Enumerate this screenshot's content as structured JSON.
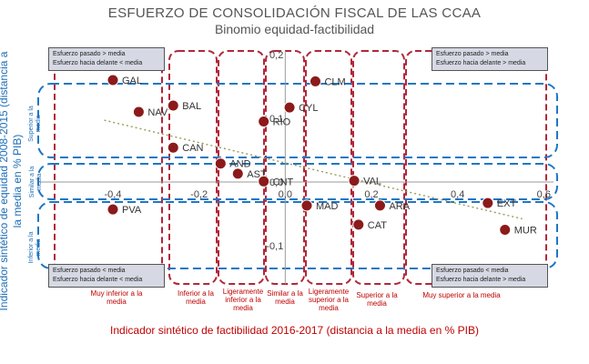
{
  "title": "ESFUERZO DE CONSOLIDACIÓN FISCAL DE LAS CCAA",
  "subtitle": "Binomio equidad-factibilidad",
  "xlabel": "Indicador sintético de factibilidad 2016-2017 (distancia a la media en % PIB)",
  "ylabel": "Indicador sintético de equidad 2008-2015 (distancia a la media en % PIB)",
  "corner_boxes": {
    "top_left": [
      "Esfuerzo pasado > media",
      "Esfuerzo hacia delante < media"
    ],
    "top_right": [
      "Esfuerzo pasado > media",
      "Esfuerzo hacia delante > media"
    ],
    "bottom_left": [
      "Esfuerzo pasado < media",
      "Esfuerzo hacia delante < media"
    ],
    "bottom_right": [
      "Esfuerzo pasado < media",
      "Esfuerzo hacia delante > media"
    ]
  },
  "column_categories": [
    "Muy inferior a la media",
    "Inferior a la media",
    "Ligeramente inferior a la media",
    "Similar a la media",
    "Ligeramente superior a la media",
    "Superior a la media",
    "Muy superior a la media"
  ],
  "row_categories": [
    "Superior a la media",
    "Similar a la media",
    "Inferior a la media"
  ],
  "colors": {
    "point": "#8b1a1a",
    "red_band": "#b0283a",
    "blue_band": "#1f77c4",
    "trend": "#9a9a5a",
    "title": "#555555",
    "xlabel": "#c00000",
    "ylabel": "#1f6fb6"
  },
  "chart_data": {
    "type": "scatter",
    "title": "ESFUERZO DE CONSOLIDACIÓN FISCAL DE LAS CCAA",
    "subtitle": "Binomio equidad-factibilidad",
    "xlabel": "Indicador sintético de factibilidad 2016-2017 (distancia a la media en % PIB)",
    "ylabel": "Indicador sintético de equidad 2008-2015 (distancia a la media en % PIB)",
    "xlim": [
      -0.5,
      0.6
    ],
    "ylim": [
      -0.15,
      0.22
    ],
    "xticks": [
      -0.4,
      -0.2,
      0,
      0.2,
      0.4,
      0.6
    ],
    "xtick_labels": [
      "-0,4",
      "-0,2",
      "0,0",
      "0,2",
      "0,4",
      "0,6"
    ],
    "yticks": [
      -0.1,
      0,
      0.1,
      0.2
    ],
    "ytick_labels": [
      "-0,1",
      "0,0",
      "0,1",
      "0,2"
    ],
    "trendline": true,
    "points": [
      {
        "label": "GAL",
        "x": -0.4,
        "y": 0.16
      },
      {
        "label": "NAV",
        "x": -0.34,
        "y": 0.11
      },
      {
        "label": "BAL",
        "x": -0.26,
        "y": 0.12
      },
      {
        "label": "CAN",
        "x": -0.26,
        "y": 0.054
      },
      {
        "label": "AND",
        "x": -0.15,
        "y": 0.029
      },
      {
        "label": "AST",
        "x": -0.11,
        "y": 0.013
      },
      {
        "label": "CNT",
        "x": -0.05,
        "y": 0.001
      },
      {
        "label": "CLM",
        "x": 0.07,
        "y": 0.158
      },
      {
        "label": "CYL",
        "x": 0.01,
        "y": 0.117
      },
      {
        "label": "RIO",
        "x": -0.05,
        "y": 0.095
      },
      {
        "label": "VAL",
        "x": 0.16,
        "y": 0.002
      },
      {
        "label": "MAD",
        "x": 0.05,
        "y": -0.037
      },
      {
        "label": "ARA",
        "x": 0.22,
        "y": -0.037
      },
      {
        "label": "EXT",
        "x": 0.47,
        "y": -0.033
      },
      {
        "label": "CAT",
        "x": 0.17,
        "y": -0.067
      },
      {
        "label": "MUR",
        "x": 0.51,
        "y": -0.075
      },
      {
        "label": "PVA",
        "x": -0.4,
        "y": -0.043
      }
    ]
  }
}
